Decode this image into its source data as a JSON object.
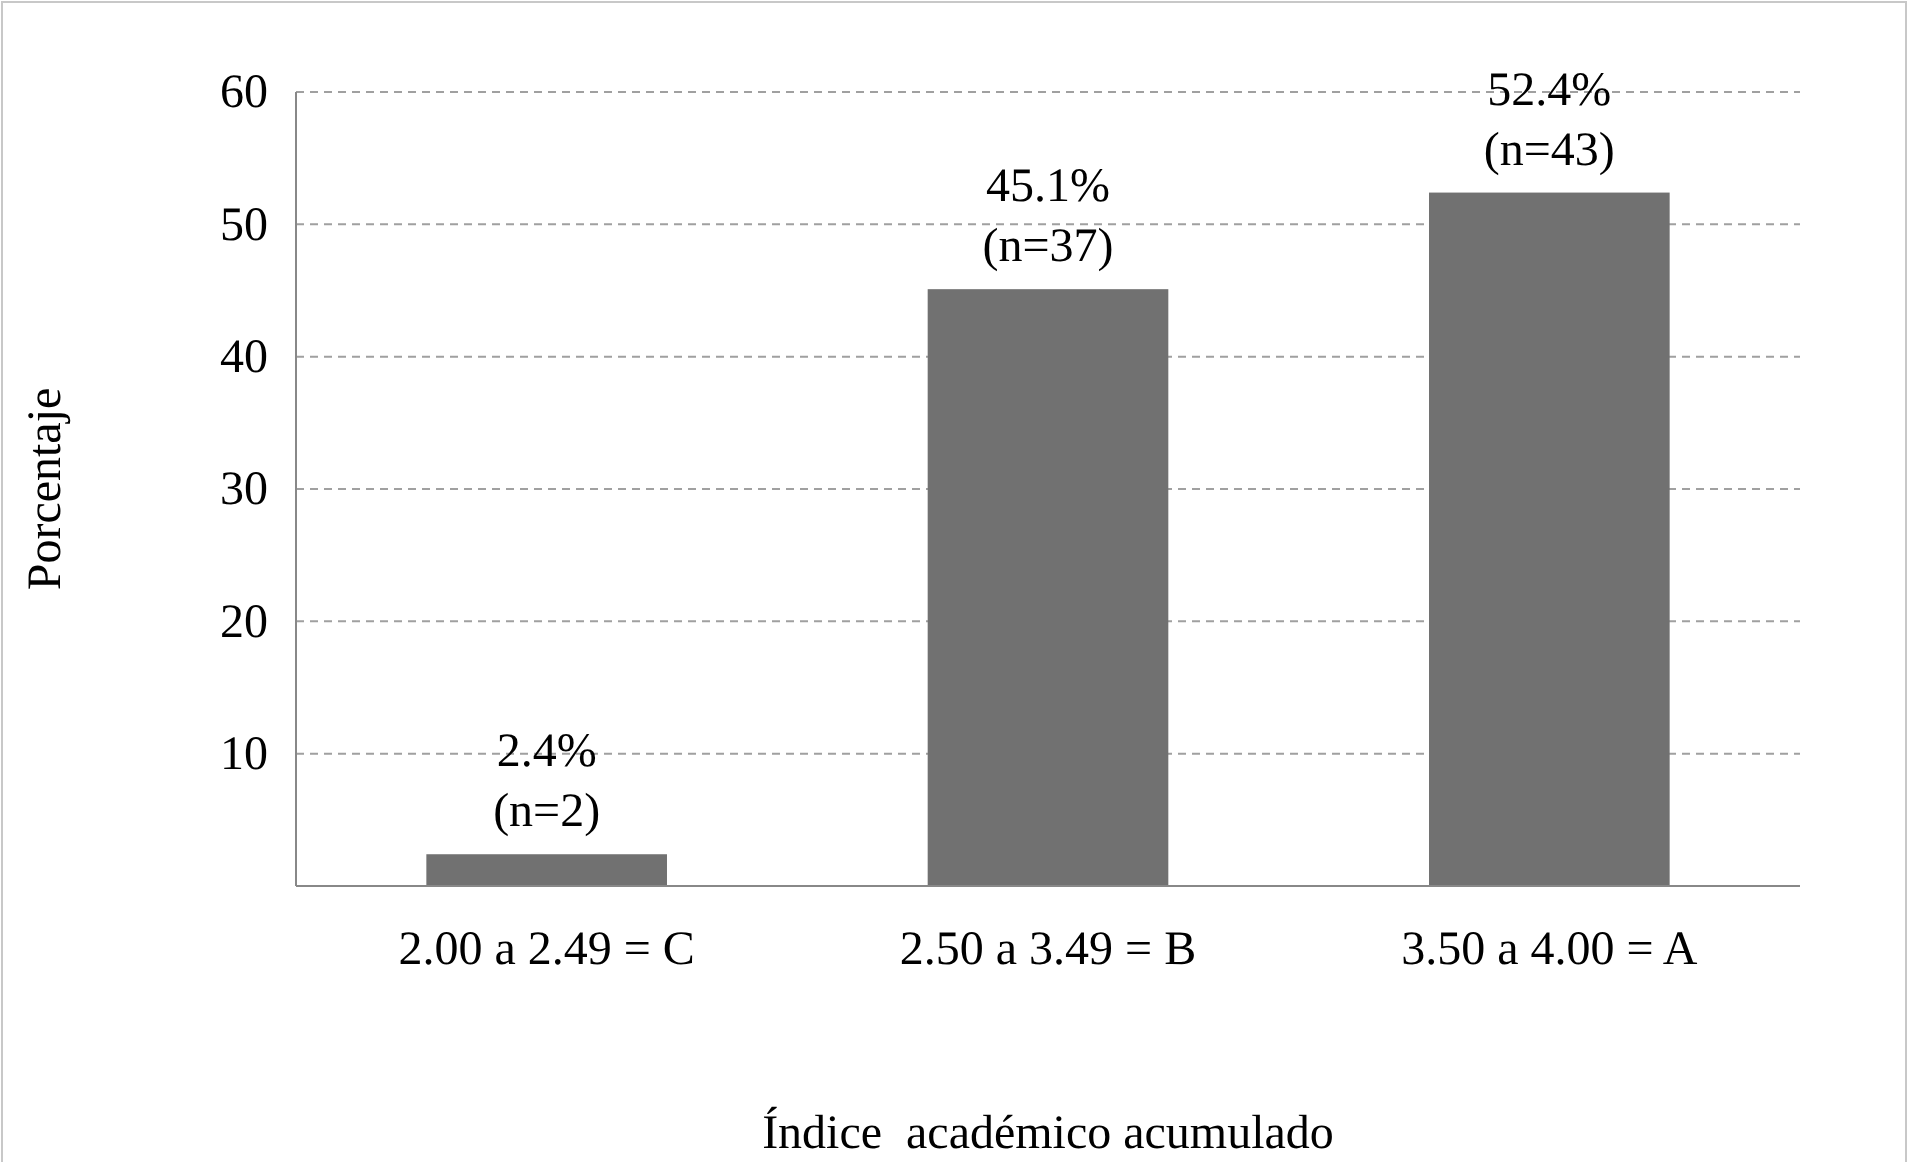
{
  "chart_data": {
    "type": "bar",
    "xlabel": "Índice  académico acumulado",
    "ylabel": "Porcentaje",
    "categories": [
      "2.00 a 2.49 = C",
      "2.50 a 3.49 = B",
      "3.50 a 4.00 = A"
    ],
    "values": [
      2.4,
      45.1,
      52.4
    ],
    "value_labels": [
      "2.4%\n(n=2)",
      "45.1%\n(n=37)",
      "52.4%\n(n=43)"
    ],
    "color": "#717171",
    "ylim": [
      0,
      60
    ],
    "yticks": [
      {
        "value": 0,
        "label": null
      },
      10,
      20,
      30,
      40,
      50,
      60
    ],
    "grid": "y"
  }
}
